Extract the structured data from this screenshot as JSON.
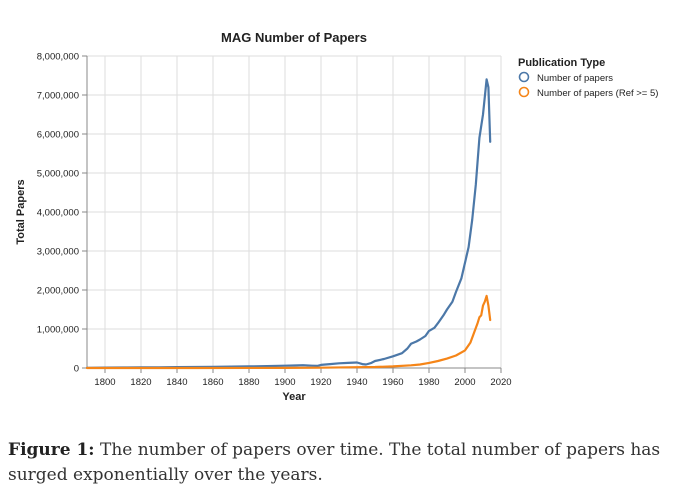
{
  "chart_data": {
    "type": "line",
    "title": "MAG Number of Papers",
    "xlabel": "Year",
    "ylabel": "Total Papers",
    "xlim": [
      1790,
      2020
    ],
    "ylim": [
      0,
      8000000
    ],
    "x_ticks": [
      1800,
      1820,
      1840,
      1860,
      1880,
      1900,
      1920,
      1940,
      1960,
      1980,
      2000,
      2020
    ],
    "y_ticks": [
      0,
      1000000,
      2000000,
      3000000,
      4000000,
      5000000,
      6000000,
      7000000,
      8000000
    ],
    "y_tick_labels": [
      "0",
      "1,000,000",
      "2,000,000",
      "3,000,000",
      "4,000,000",
      "5,000,000",
      "6,000,000",
      "7,000,000",
      "8,000,000"
    ],
    "grid": true,
    "legend": {
      "title": "Publication Type",
      "position": "top-right"
    },
    "series": [
      {
        "name": "Number of papers",
        "color": "#4c78a8",
        "points": [
          [
            1790,
            5000
          ],
          [
            1800,
            10000
          ],
          [
            1810,
            12000
          ],
          [
            1820,
            15000
          ],
          [
            1830,
            18000
          ],
          [
            1840,
            22000
          ],
          [
            1850,
            26000
          ],
          [
            1860,
            32000
          ],
          [
            1870,
            36000
          ],
          [
            1880,
            42000
          ],
          [
            1890,
            50000
          ],
          [
            1900,
            60000
          ],
          [
            1905,
            65000
          ],
          [
            1910,
            72000
          ],
          [
            1915,
            60000
          ],
          [
            1918,
            55000
          ],
          [
            1920,
            80000
          ],
          [
            1925,
            100000
          ],
          [
            1930,
            120000
          ],
          [
            1935,
            130000
          ],
          [
            1940,
            140000
          ],
          [
            1943,
            100000
          ],
          [
            1945,
            90000
          ],
          [
            1948,
            130000
          ],
          [
            1950,
            180000
          ],
          [
            1955,
            230000
          ],
          [
            1960,
            300000
          ],
          [
            1965,
            380000
          ],
          [
            1968,
            500000
          ],
          [
            1970,
            620000
          ],
          [
            1973,
            680000
          ],
          [
            1975,
            730000
          ],
          [
            1978,
            820000
          ],
          [
            1980,
            950000
          ],
          [
            1983,
            1030000
          ],
          [
            1985,
            1150000
          ],
          [
            1988,
            1350000
          ],
          [
            1990,
            1500000
          ],
          [
            1993,
            1700000
          ],
          [
            1995,
            1950000
          ],
          [
            1998,
            2300000
          ],
          [
            2000,
            2700000
          ],
          [
            2002,
            3100000
          ],
          [
            2004,
            3800000
          ],
          [
            2006,
            4700000
          ],
          [
            2008,
            5900000
          ],
          [
            2010,
            6500000
          ],
          [
            2012,
            7400000
          ],
          [
            2013,
            7200000
          ],
          [
            2014,
            5800000
          ]
        ]
      },
      {
        "name": "Number of papers (Ref >= 5)",
        "color": "#f58518",
        "points": [
          [
            1790,
            0
          ],
          [
            1850,
            1000
          ],
          [
            1900,
            3000
          ],
          [
            1920,
            8000
          ],
          [
            1940,
            20000
          ],
          [
            1950,
            25000
          ],
          [
            1960,
            40000
          ],
          [
            1970,
            70000
          ],
          [
            1975,
            90000
          ],
          [
            1980,
            130000
          ],
          [
            1985,
            180000
          ],
          [
            1990,
            240000
          ],
          [
            1995,
            320000
          ],
          [
            2000,
            450000
          ],
          [
            2003,
            650000
          ],
          [
            2005,
            900000
          ],
          [
            2007,
            1150000
          ],
          [
            2008,
            1300000
          ],
          [
            2009,
            1350000
          ],
          [
            2010,
            1600000
          ],
          [
            2011,
            1700000
          ],
          [
            2012,
            1850000
          ],
          [
            2013,
            1600000
          ],
          [
            2014,
            1230000
          ]
        ]
      }
    ]
  },
  "caption": {
    "label": "Figure 1:",
    "text": " The number of papers over time. The total number of papers has surged exponentially over the years."
  }
}
